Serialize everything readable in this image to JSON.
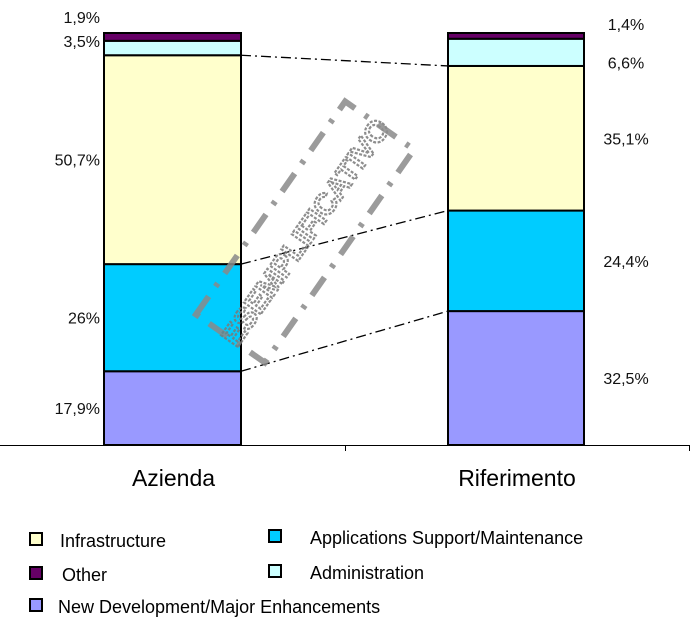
{
  "chart_data": {
    "type": "bar",
    "stacked": true,
    "percent": true,
    "categories": [
      "Azienda",
      "Riferimento"
    ],
    "series": [
      {
        "name": "New Development/Major Enhancements",
        "color": "#9999ff",
        "values": [
          17.9,
          32.5
        ],
        "labels": [
          "17,9%",
          "32,5%"
        ]
      },
      {
        "name": "Applications Support/Maintenance",
        "color": "#00ccff",
        "values": [
          26,
          24.4
        ],
        "labels": [
          "26%",
          "24,4%"
        ]
      },
      {
        "name": "Infrastructure",
        "color": "#ffffcc",
        "values": [
          50.7,
          35.1
        ],
        "labels": [
          "50,7%",
          "35,1%"
        ]
      },
      {
        "name": "Administration",
        "color": "#ccffff",
        "values": [
          3.5,
          6.6
        ],
        "labels": [
          "3,5%",
          "6,6%"
        ]
      },
      {
        "name": "Other",
        "color": "#660066",
        "values": [
          1.9,
          1.4
        ],
        "labels": [
          "1,9%",
          "1,4%"
        ]
      }
    ],
    "legend_order": [
      "Infrastructure",
      "Applications Support/Maintenance",
      "Other",
      "Administration",
      "New Development/Major Enhancements"
    ],
    "legend_position": "bottom",
    "ylim": [
      0,
      100
    ],
    "grid": false,
    "watermark": "ESEMPLIFICATIVO"
  }
}
